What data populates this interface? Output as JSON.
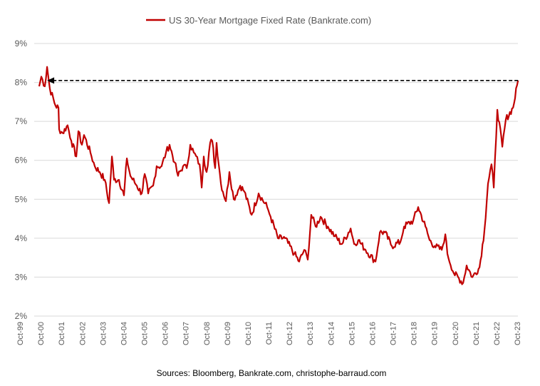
{
  "chart_data": {
    "type": "line",
    "title": "",
    "xlabel": "",
    "ylabel": "",
    "legend": {
      "position": "top-center",
      "entries": [
        "US 30-Year Mortgage Fixed Rate (Bankrate.com)"
      ]
    },
    "ylim": [
      2,
      9
    ],
    "yticks": [
      2,
      3,
      4,
      5,
      6,
      7,
      8,
      9
    ],
    "ytick_labels": [
      "2%",
      "3%",
      "4%",
      "5%",
      "6%",
      "7%",
      "8%",
      "9%"
    ],
    "xlim": [
      1999.75,
      2023.75
    ],
    "xticks": [
      1999.75,
      2000.75,
      2001.75,
      2002.75,
      2003.75,
      2004.75,
      2005.75,
      2006.75,
      2007.75,
      2008.75,
      2009.75,
      2010.75,
      2011.75,
      2012.75,
      2013.75,
      2014.75,
      2015.75,
      2016.75,
      2017.75,
      2018.75,
      2019.75,
      2020.75,
      2021.75,
      2022.75,
      2023.75
    ],
    "xtick_labels": [
      "Oct-99",
      "Oct-00",
      "Oct-01",
      "Oct-02",
      "Oct-03",
      "Oct-04",
      "Oct-05",
      "Oct-06",
      "Oct-07",
      "Oct-08",
      "Oct-09",
      "Oct-10",
      "Oct-11",
      "Oct-12",
      "Oct-13",
      "Oct-14",
      "Oct-15",
      "Oct-16",
      "Oct-17",
      "Oct-18",
      "Oct-19",
      "Oct-20",
      "Oct-21",
      "Oct-22",
      "Oct-23"
    ],
    "grid": "horizontal",
    "series": [
      {
        "name": "US 30-Year Mortgage Fixed Rate (Bankrate.com)",
        "color": "#C00000",
        "x": [
          2000.68,
          2000.78,
          2000.95,
          2001.06,
          2001.19,
          2001.47,
          2001.61,
          2001.64,
          2001.81,
          2002.05,
          2002.23,
          2002.47,
          2002.57,
          2002.74,
          2002.84,
          2003.15,
          2003.36,
          2003.6,
          2003.84,
          2004.05,
          2004.19,
          2004.29,
          2004.53,
          2004.77,
          2004.91,
          2005.08,
          2005.39,
          2005.63,
          2005.77,
          2005.94,
          2006.18,
          2006.35,
          2006.59,
          2006.8,
          2006.97,
          2007.21,
          2007.38,
          2007.62,
          2007.8,
          2007.97,
          2008.14,
          2008.42,
          2008.52,
          2008.62,
          2008.76,
          2008.93,
          2009.03,
          2009.17,
          2009.24,
          2009.45,
          2009.69,
          2009.86,
          2010.07,
          2010.38,
          2010.58,
          2010.93,
          2011.27,
          2011.68,
          2011.85,
          2012.2,
          2012.54,
          2012.99,
          2013.23,
          2013.47,
          2013.64,
          2013.81,
          2014.02,
          2014.26,
          2014.61,
          2014.95,
          2015.29,
          2015.71,
          2015.88,
          2016.08,
          2016.43,
          2016.91,
          2017.12,
          2017.36,
          2017.7,
          2018.11,
          2018.29,
          2018.73,
          2018.97,
          2019.32,
          2019.52,
          2019.76,
          2020.11,
          2020.28,
          2020.38,
          2020.69,
          2021.14,
          2021.31,
          2021.59,
          2021.93,
          2022.17,
          2022.34,
          2022.51,
          2022.62,
          2022.79,
          2023.03,
          2023.2,
          2023.55,
          2023.79
        ],
        "y": [
          7.9,
          8.15,
          7.9,
          8.4,
          7.85,
          7.4,
          7.35,
          6.8,
          6.7,
          6.9,
          6.5,
          6.1,
          6.75,
          6.4,
          6.65,
          6.2,
          5.85,
          5.7,
          5.5,
          4.9,
          6.1,
          5.5,
          5.5,
          5.1,
          6.05,
          5.6,
          5.35,
          5.15,
          5.65,
          5.15,
          5.35,
          5.85,
          5.85,
          6.2,
          6.4,
          5.95,
          5.6,
          5.85,
          5.8,
          6.4,
          6.2,
          5.9,
          5.3,
          6.1,
          5.7,
          6.45,
          6.5,
          5.8,
          6.45,
          5.4,
          4.95,
          5.7,
          5.0,
          5.35,
          5.2,
          4.6,
          5.15,
          4.8,
          4.55,
          4.0,
          4.0,
          3.6,
          3.4,
          3.7,
          3.45,
          4.6,
          4.3,
          4.55,
          4.3,
          4.05,
          3.85,
          4.25,
          3.85,
          3.95,
          3.7,
          3.4,
          4.15,
          4.15,
          3.8,
          3.9,
          4.3,
          4.45,
          4.8,
          4.3,
          3.95,
          3.8,
          3.7,
          4.1,
          3.6,
          3.1,
          2.85,
          3.3,
          3.0,
          3.25,
          4.2,
          5.4,
          5.9,
          5.3,
          7.3,
          6.35,
          7.05,
          7.35,
          8.05
        ]
      }
    ],
    "annotations": [
      {
        "type": "dashed-arrow",
        "level": 8.05,
        "from_x": 2023.79,
        "to_x": 2001.06,
        "color": "#000000"
      }
    ],
    "source": "Sources: Bloomberg, Bankrate.com, christophe-barraud.com"
  }
}
